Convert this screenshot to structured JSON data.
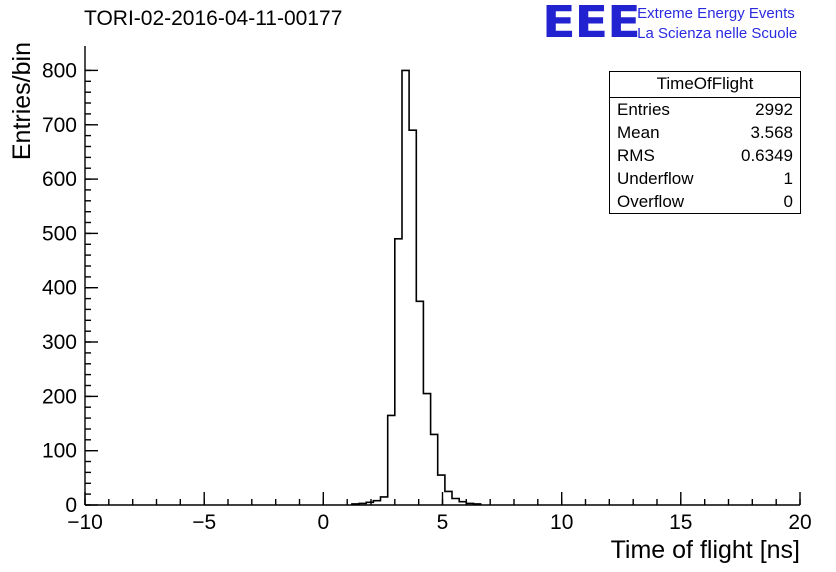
{
  "title": "TORI-02-2016-04-11-00177",
  "logo": {
    "text": "EEE",
    "tagline1": "Extreme Energy Events",
    "tagline2": "La Scienza nelle Scuole",
    "color": "#2222d0"
  },
  "stats": {
    "title": "TimeOfFlight",
    "rows": [
      {
        "label": "Entries",
        "value": "2992"
      },
      {
        "label": "Mean",
        "value": "3.568"
      },
      {
        "label": "RMS",
        "value": "0.6349"
      },
      {
        "label": "Underflow",
        "value": "1"
      },
      {
        "label": "Overflow",
        "value": "0"
      }
    ]
  },
  "chart_data": {
    "type": "histogram",
    "title": "TORI-02-2016-04-11-00177",
    "xlabel": "Time of flight [ns]",
    "ylabel": "Entries/bin",
    "xlim": [
      -10,
      20
    ],
    "ylim": [
      0,
      800
    ],
    "y_frame_max": 845,
    "x_tick_values": [
      -10,
      -5,
      0,
      5,
      10,
      15,
      20
    ],
    "x_tick_labels": [
      "−10",
      "−5",
      "0",
      "5",
      "10",
      "15",
      "20"
    ],
    "y_tick_values": [
      0,
      100,
      200,
      300,
      400,
      500,
      600,
      700,
      800
    ],
    "y_tick_labels": [
      "0",
      "100",
      "200",
      "300",
      "400",
      "500",
      "600",
      "700",
      "800"
    ],
    "x_minor_step": 1,
    "y_minor_step": 20,
    "grid": false,
    "line_color": "#000000",
    "bin_start": 1.2,
    "bin_width": 0.3,
    "counts": [
      2,
      3,
      5,
      8,
      15,
      165,
      490,
      800,
      690,
      375,
      205,
      130,
      55,
      25,
      12,
      6,
      3,
      2
    ]
  }
}
